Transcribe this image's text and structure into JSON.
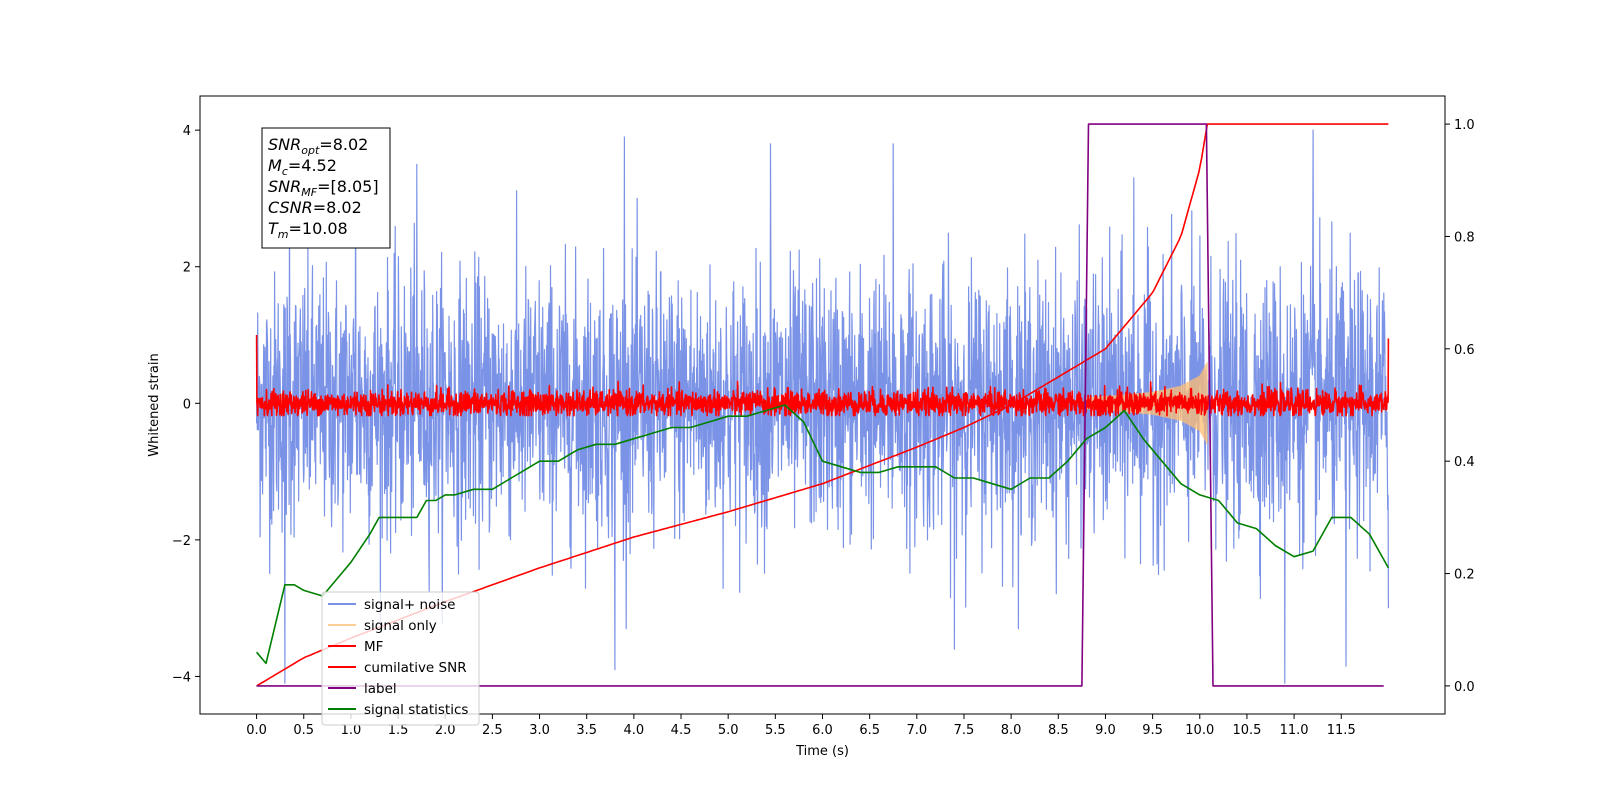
{
  "chart_data": {
    "type": "line",
    "title": "",
    "xlabel": "Time (s)",
    "ylabel": "Whitened strain",
    "y2label": "",
    "xlim": [
      -0.6,
      12.6
    ],
    "ylim": [
      -4.55,
      4.5
    ],
    "y2lim": [
      -0.05,
      1.05
    ],
    "x_ticks": [
      0.0,
      0.5,
      1.0,
      1.5,
      2.0,
      2.5,
      3.0,
      3.5,
      4.0,
      4.5,
      5.0,
      5.5,
      6.0,
      6.5,
      7.0,
      7.5,
      8.0,
      8.5,
      9.0,
      9.5,
      10.0,
      10.5,
      11.0,
      11.5
    ],
    "x_tick_labels": [
      "0.0",
      "0.5",
      "1.0",
      "1.5",
      "2.0",
      "2.5",
      "3.0",
      "3.5",
      "4.0",
      "4.5",
      "5.0",
      "5.5",
      "6.0",
      "6.5",
      "7.0",
      "7.5",
      "8.0",
      "8.5",
      "9.0",
      "9.5",
      "10.0",
      "10.5",
      "11.0",
      "11.5"
    ],
    "y_ticks": [
      -4,
      -2,
      0,
      2,
      4
    ],
    "y_tick_labels": [
      "−4",
      "−2",
      "0",
      "2",
      "4"
    ],
    "y2_ticks": [
      0.0,
      0.2,
      0.4,
      0.6,
      0.8,
      1.0
    ],
    "y2_tick_labels": [
      "0.0",
      "0.2",
      "0.4",
      "0.6",
      "0.8",
      "1.0"
    ],
    "grid": false,
    "legend_position": "lower-left",
    "info_box": {
      "lines": [
        {
          "sym": "SNR",
          "sub": "opt",
          "text": "=8.02"
        },
        {
          "sym": "M",
          "sub": "c",
          "text": "=4.52"
        },
        {
          "sym": "SNR",
          "sub": "MF",
          "text": "=[8.05]"
        },
        {
          "sym": "CSNR",
          "sub": "",
          "text": "=8.02"
        },
        {
          "sym": "T",
          "sub": "m",
          "text": "=10.08"
        }
      ]
    },
    "series": [
      {
        "name": "signal+ noise",
        "color": "#7b93e6",
        "axis": "left",
        "kind": "noise",
        "x_range": [
          0.0,
          12.0
        ],
        "sigma": 1.0,
        "peaks_high": [
          [
            0.35,
            3.5
          ],
          [
            1.05,
            3.4
          ],
          [
            1.7,
            3.5
          ],
          [
            3.9,
            3.9
          ],
          [
            5.45,
            3.8
          ],
          [
            6.75,
            3.8
          ],
          [
            9.3,
            3.3
          ],
          [
            11.2,
            4.0
          ]
        ],
        "peaks_low": [
          [
            0.3,
            -4.1
          ],
          [
            3.8,
            -3.9
          ],
          [
            7.4,
            -3.6
          ],
          [
            10.9,
            -4.1
          ],
          [
            11.55,
            -3.85
          ],
          [
            12.0,
            -3.0
          ]
        ]
      },
      {
        "name": "signal only",
        "color": "#ffbe73",
        "axis": "left",
        "kind": "chirp",
        "envelope": [
          [
            8.8,
            0.08
          ],
          [
            9.2,
            0.12
          ],
          [
            9.5,
            0.16
          ],
          [
            9.8,
            0.25
          ],
          [
            10.0,
            0.4
          ],
          [
            10.08,
            0.6
          ]
        ]
      },
      {
        "name": "MF",
        "color": "#ff0000",
        "axis": "left",
        "kind": "noise",
        "x_range": [
          0.0,
          12.0
        ],
        "sigma": 0.1,
        "edge_spikes": [
          [
            0.0,
            1.0
          ],
          [
            12.0,
            0.95
          ]
        ]
      },
      {
        "name": "cumilative SNR",
        "color": "#ff0000",
        "axis": "right",
        "x": [
          0.0,
          0.5,
          1.0,
          2.0,
          3.0,
          4.0,
          5.0,
          6.0,
          7.0,
          7.5,
          8.0,
          8.5,
          9.0,
          9.5,
          9.8,
          10.0,
          10.08,
          12.0
        ],
        "values": [
          0.0,
          0.05,
          0.085,
          0.15,
          0.21,
          0.265,
          0.31,
          0.36,
          0.425,
          0.46,
          0.5,
          0.55,
          0.6,
          0.7,
          0.8,
          0.92,
          1.0,
          1.0
        ]
      },
      {
        "name": "label",
        "color": "#800080",
        "axis": "right",
        "x": [
          0.0,
          8.75,
          8.82,
          10.07,
          10.14,
          11.95
        ],
        "values": [
          0.0,
          0.0,
          1.0,
          1.0,
          0.0,
          0.0
        ]
      },
      {
        "name": "signal statistics",
        "color": "#008000",
        "axis": "right",
        "x": [
          0.0,
          0.1,
          0.3,
          0.4,
          0.5,
          0.7,
          0.9,
          1.0,
          1.2,
          1.3,
          1.4,
          1.5,
          1.7,
          1.8,
          1.9,
          2.0,
          2.1,
          2.3,
          2.5,
          2.7,
          2.9,
          3.0,
          3.2,
          3.4,
          3.6,
          3.8,
          4.0,
          4.2,
          4.4,
          4.6,
          4.8,
          5.0,
          5.2,
          5.4,
          5.6,
          5.8,
          6.0,
          6.2,
          6.4,
          6.6,
          6.8,
          7.0,
          7.2,
          7.4,
          7.6,
          7.8,
          8.0,
          8.2,
          8.4,
          8.6,
          8.8,
          9.0,
          9.2,
          9.4,
          9.6,
          9.8,
          10.0,
          10.2,
          10.4,
          10.6,
          10.8,
          11.0,
          11.2,
          11.4,
          11.6,
          11.8,
          12.0
        ],
        "values": [
          0.06,
          0.04,
          0.18,
          0.18,
          0.17,
          0.16,
          0.2,
          0.22,
          0.27,
          0.3,
          0.3,
          0.3,
          0.3,
          0.33,
          0.33,
          0.34,
          0.34,
          0.35,
          0.35,
          0.37,
          0.39,
          0.4,
          0.4,
          0.42,
          0.43,
          0.43,
          0.44,
          0.45,
          0.46,
          0.46,
          0.47,
          0.48,
          0.48,
          0.49,
          0.5,
          0.47,
          0.4,
          0.39,
          0.38,
          0.38,
          0.39,
          0.39,
          0.39,
          0.37,
          0.37,
          0.36,
          0.35,
          0.37,
          0.37,
          0.4,
          0.44,
          0.46,
          0.49,
          0.44,
          0.4,
          0.36,
          0.34,
          0.33,
          0.29,
          0.28,
          0.25,
          0.23,
          0.24,
          0.3,
          0.3,
          0.27,
          0.21
        ]
      }
    ]
  }
}
